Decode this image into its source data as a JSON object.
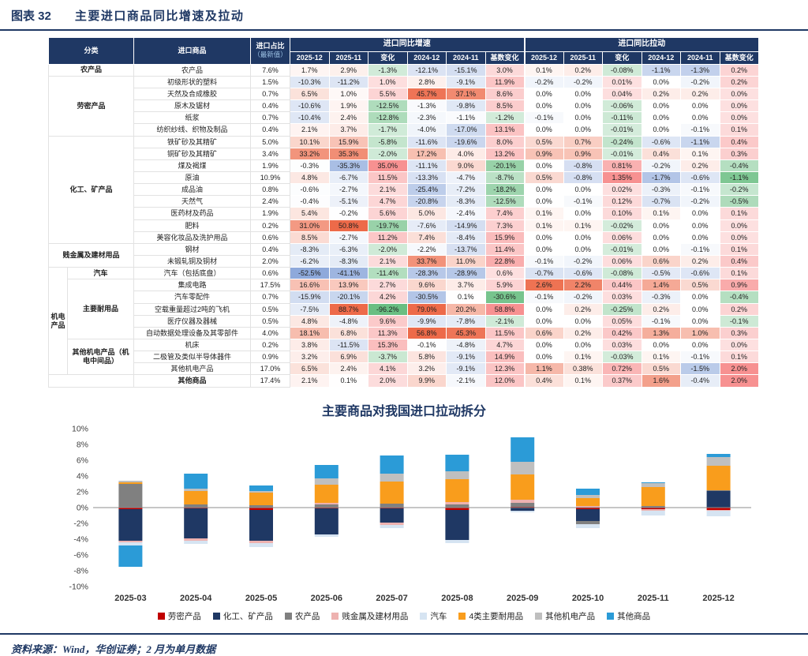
{
  "header": {
    "figure_label": "图表 32",
    "title": "主要进口商品同比增速及拉动"
  },
  "table": {
    "headers": {
      "category": "分类",
      "commodity": "进口商品",
      "share_line1": "进口占比",
      "share_line2": "（最新值）",
      "growth_group": "进口同比增速",
      "pull_group": "进口同比拉动",
      "sub": [
        "2025-12",
        "2025-11",
        "变化",
        "2024-12",
        "2024-11",
        "基数变化"
      ]
    },
    "rows": [
      {
        "cat": {
          "label": "农产品",
          "span": 1,
          "wide": true
        },
        "name": "农产品",
        "share": "7.6%",
        "g": [
          "1.7%",
          "2.9%",
          "-1.3%",
          "-12.1%",
          "-15.1%",
          "3.0%"
        ],
        "p": [
          "0.1%",
          "0.2%",
          "-0.08%",
          "-1.1%",
          "-1.3%",
          "0.2%"
        ]
      },
      {
        "cat": {
          "label": "劳密产品",
          "span": 5,
          "wide": true
        },
        "name": "初级形状的塑料",
        "share": "1.5%",
        "g": [
          "-10.3%",
          "-11.2%",
          "1.0%",
          "2.8%",
          "-9.1%",
          "11.9%"
        ],
        "p": [
          "-0.2%",
          "-0.2%",
          "0.01%",
          "0.0%",
          "-0.2%",
          "0.2%"
        ]
      },
      {
        "name": "天然及合成橡胶",
        "share": "0.7%",
        "g": [
          "6.5%",
          "1.0%",
          "5.5%",
          "45.7%",
          "37.1%",
          "8.6%"
        ],
        "p": [
          "0.0%",
          "0.0%",
          "0.04%",
          "0.2%",
          "0.2%",
          "0.0%"
        ]
      },
      {
        "name": "原木及锯材",
        "share": "0.4%",
        "g": [
          "-10.6%",
          "1.9%",
          "-12.5%",
          "-1.3%",
          "-9.8%",
          "8.5%"
        ],
        "p": [
          "0.0%",
          "0.0%",
          "-0.06%",
          "0.0%",
          "0.0%",
          "0.0%"
        ]
      },
      {
        "name": "纸浆",
        "share": "0.7%",
        "g": [
          "-10.4%",
          "2.4%",
          "-12.8%",
          "-2.3%",
          "-1.1%",
          "-1.2%"
        ],
        "p": [
          "-0.1%",
          "0.0%",
          "-0.11%",
          "0.0%",
          "0.0%",
          "0.0%"
        ]
      },
      {
        "name": "纺织纱线、织物及制品",
        "share": "0.4%",
        "g": [
          "2.1%",
          "3.7%",
          "-1.7%",
          "-4.0%",
          "-17.0%",
          "13.1%"
        ],
        "p": [
          "0.0%",
          "0.0%",
          "-0.01%",
          "0.0%",
          "-0.1%",
          "0.1%"
        ]
      },
      {
        "cat": {
          "label": "化工、矿产品",
          "span": 9,
          "wide": true
        },
        "name": "铁矿砂及其精矿",
        "share": "5.0%",
        "g": [
          "10.1%",
          "15.9%",
          "-5.8%",
          "-11.6%",
          "-19.6%",
          "8.0%"
        ],
        "p": [
          "0.5%",
          "0.7%",
          "-0.24%",
          "-0.6%",
          "-1.1%",
          "0.4%"
        ]
      },
      {
        "name": "铜矿砂及其精矿",
        "share": "3.4%",
        "g": [
          "33.2%",
          "35.3%",
          "-2.0%",
          "17.2%",
          "4.0%",
          "13.2%"
        ],
        "p": [
          "0.9%",
          "0.9%",
          "-0.01%",
          "0.4%",
          "0.1%",
          "0.3%"
        ]
      },
      {
        "name": "煤及褐煤",
        "share": "1.9%",
        "g": [
          "-0.3%",
          "-35.3%",
          "35.0%",
          "-11.1%",
          "9.0%",
          "-20.1%"
        ],
        "p": [
          "0.0%",
          "-0.8%",
          "0.81%",
          "-0.2%",
          "0.2%",
          "-0.4%"
        ]
      },
      {
        "name": "原油",
        "share": "10.9%",
        "g": [
          "4.8%",
          "-6.7%",
          "11.5%",
          "-13.3%",
          "-4.7%",
          "-8.7%"
        ],
        "p": [
          "0.5%",
          "-0.8%",
          "1.35%",
          "-1.7%",
          "-0.6%",
          "-1.1%"
        ]
      },
      {
        "name": "成品油",
        "share": "0.8%",
        "g": [
          "-0.6%",
          "-2.7%",
          "2.1%",
          "-25.4%",
          "-7.2%",
          "-18.2%"
        ],
        "p": [
          "0.0%",
          "0.0%",
          "0.02%",
          "-0.3%",
          "-0.1%",
          "-0.2%"
        ]
      },
      {
        "name": "天然气",
        "share": "2.4%",
        "g": [
          "-0.4%",
          "-5.1%",
          "4.7%",
          "-20.8%",
          "-8.3%",
          "-12.5%"
        ],
        "p": [
          "0.0%",
          "-0.1%",
          "0.12%",
          "-0.7%",
          "-0.2%",
          "-0.5%"
        ]
      },
      {
        "name": "医药材及药品",
        "share": "1.9%",
        "g": [
          "5.4%",
          "-0.2%",
          "5.6%",
          "5.0%",
          "-2.4%",
          "7.4%"
        ],
        "p": [
          "0.1%",
          "0.0%",
          "0.10%",
          "0.1%",
          "0.0%",
          "0.1%"
        ]
      },
      {
        "name": "肥料",
        "share": "0.2%",
        "g": [
          "31.0%",
          "50.8%",
          "-19.7%",
          "-7.6%",
          "-14.9%",
          "7.3%"
        ],
        "p": [
          "0.1%",
          "0.1%",
          "-0.02%",
          "0.0%",
          "0.0%",
          "0.0%"
        ]
      },
      {
        "name": "美容化妆品及洗护用品",
        "share": "0.6%",
        "g": [
          "8.5%",
          "-2.7%",
          "11.2%",
          "7.4%",
          "-8.4%",
          "15.9%"
        ],
        "p": [
          "0.0%",
          "0.0%",
          "0.06%",
          "0.0%",
          "0.0%",
          "0.0%"
        ]
      },
      {
        "cat": {
          "label": "贱金属及建材用品",
          "span": 2,
          "wide": true
        },
        "name": "钢材",
        "share": "0.4%",
        "g": [
          "-8.3%",
          "-6.3%",
          "-2.0%",
          "-2.2%",
          "-13.7%",
          "11.4%"
        ],
        "p": [
          "0.0%",
          "0.0%",
          "-0.01%",
          "0.0%",
          "-0.1%",
          "0.1%"
        ]
      },
      {
        "name": "未锻轧铜及铜材",
        "share": "2.0%",
        "g": [
          "-6.2%",
          "-8.3%",
          "2.1%",
          "33.7%",
          "11.0%",
          "22.8%"
        ],
        "p": [
          "-0.1%",
          "-0.2%",
          "0.06%",
          "0.6%",
          "0.2%",
          "0.4%"
        ]
      },
      {
        "outer": {
          "label": "机电产品",
          "span": 9
        },
        "cat": {
          "label": "汽车",
          "span": 1,
          "wide": false
        },
        "name": "汽车（包括底盘）",
        "share": "0.6%",
        "g": [
          "-52.5%",
          "-41.1%",
          "-11.4%",
          "-28.3%",
          "-28.9%",
          "0.6%"
        ],
        "p": [
          "-0.7%",
          "-0.6%",
          "-0.08%",
          "-0.5%",
          "-0.6%",
          "0.1%"
        ]
      },
      {
        "cat": {
          "label": "主要耐用品",
          "span": 5,
          "wide": false
        },
        "name": "集成电路",
        "share": "17.5%",
        "g": [
          "16.6%",
          "13.9%",
          "2.7%",
          "9.6%",
          "3.7%",
          "5.9%"
        ],
        "p": [
          "2.6%",
          "2.2%",
          "0.44%",
          "1.4%",
          "0.5%",
          "0.9%"
        ]
      },
      {
        "name": "汽车零配件",
        "share": "0.7%",
        "g": [
          "-15.9%",
          "-20.1%",
          "4.2%",
          "-30.5%",
          "0.1%",
          "-30.6%"
        ],
        "p": [
          "-0.1%",
          "-0.2%",
          "0.03%",
          "-0.3%",
          "0.0%",
          "-0.4%"
        ]
      },
      {
        "name": "空载重量超过2吨的飞机",
        "share": "0.5%",
        "g": [
          "-7.5%",
          "88.7%",
          "-96.2%",
          "79.0%",
          "20.2%",
          "58.8%"
        ],
        "p": [
          "0.0%",
          "0.2%",
          "-0.25%",
          "0.2%",
          "0.0%",
          "0.2%"
        ]
      },
      {
        "name": "医疗仪器及器械",
        "share": "0.5%",
        "g": [
          "4.8%",
          "-4.8%",
          "9.6%",
          "-9.9%",
          "-7.8%",
          "-2.1%"
        ],
        "p": [
          "0.0%",
          "0.0%",
          "0.05%",
          "-0.1%",
          "0.0%",
          "-0.1%"
        ]
      },
      {
        "name": "自动数据处理设备及其零部件",
        "share": "4.0%",
        "g": [
          "18.1%",
          "6.8%",
          "11.3%",
          "56.8%",
          "45.3%",
          "11.5%"
        ],
        "p": [
          "0.6%",
          "0.2%",
          "0.42%",
          "1.3%",
          "1.0%",
          "0.3%"
        ]
      },
      {
        "cat": {
          "label": "其他机电产品（机电中间品）",
          "span": 3,
          "wide": false
        },
        "name": "机床",
        "share": "0.2%",
        "g": [
          "3.8%",
          "-11.5%",
          "15.3%",
          "-0.1%",
          "-4.8%",
          "4.7%"
        ],
        "p": [
          "0.0%",
          "0.0%",
          "0.03%",
          "0.0%",
          "0.0%",
          "0.0%"
        ]
      },
      {
        "name": "二极管及类似半导体器件",
        "share": "0.9%",
        "g": [
          "3.2%",
          "6.9%",
          "-3.7%",
          "5.8%",
          "-9.1%",
          "14.9%"
        ],
        "p": [
          "0.0%",
          "0.1%",
          "-0.03%",
          "0.1%",
          "-0.1%",
          "0.1%"
        ]
      },
      {
        "name": "其他机电产品",
        "share": "17.0%",
        "g": [
          "6.5%",
          "2.4%",
          "4.1%",
          "3.2%",
          "-9.1%",
          "12.3%"
        ],
        "p": [
          "1.1%",
          "0.38%",
          "0.72%",
          "0.5%",
          "-1.5%",
          "2.0%"
        ]
      },
      {
        "cat": {
          "label": "",
          "span": 1,
          "wide": true
        },
        "name": "其他商品",
        "bold": true,
        "share": "17.4%",
        "g": [
          "2.1%",
          "0.1%",
          "2.0%",
          "9.9%",
          "-2.1%",
          "12.0%"
        ],
        "p": [
          "0.4%",
          "0.1%",
          "0.37%",
          "1.6%",
          "-0.4%",
          "2.0%"
        ]
      }
    ]
  },
  "chart_data": {
    "type": "bar",
    "stacked": true,
    "title": "主要商品对我国进口拉动拆分",
    "unit": "%",
    "ylim": [
      -10,
      10
    ],
    "ytick_step": 2,
    "grid": false,
    "legend_position": "bottom",
    "x": [
      "2025-03",
      "2025-04",
      "2025-05",
      "2025-06",
      "2025-07",
      "2025-08",
      "2025-09",
      "2025-10",
      "2025-11",
      "2025-12"
    ],
    "series": [
      {
        "name": "劳密产品",
        "values": [
          -0.2,
          -0.1,
          -0.3,
          -0.1,
          -0.1,
          -0.3,
          0.1,
          -0.2,
          -0.2,
          -0.3
        ]
      },
      {
        "name": "化工、矿产品",
        "values": [
          -4.0,
          -3.8,
          -3.9,
          -3.3,
          -1.8,
          -3.8,
          -0.4,
          -1.5,
          0.0,
          2.1
        ]
      },
      {
        "name": "农产品",
        "values": [
          3.0,
          0.4,
          0.3,
          0.4,
          0.5,
          0.4,
          0.5,
          -0.4,
          0.2,
          0.1
        ]
      },
      {
        "name": "贱金属及建材用品",
        "values": [
          -0.2,
          -0.3,
          -0.3,
          0.2,
          -0.3,
          0.3,
          0.4,
          0.2,
          -0.2,
          -0.1
        ]
      },
      {
        "name": "汽车",
        "values": [
          -0.4,
          -0.4,
          -0.5,
          -0.3,
          -0.4,
          -0.4,
          -0.2,
          -0.5,
          -0.6,
          -0.7
        ]
      },
      {
        "name": "4类主要耐用品",
        "values": [
          0.2,
          1.7,
          1.6,
          2.3,
          2.8,
          2.9,
          3.2,
          1.0,
          2.4,
          3.1
        ]
      },
      {
        "name": "其他机电产品",
        "values": [
          0.2,
          0.3,
          0.2,
          0.8,
          1.0,
          1.0,
          1.6,
          0.4,
          0.5,
          1.1
        ]
      },
      {
        "name": "其他商品",
        "values": [
          -2.7,
          1.9,
          0.7,
          1.7,
          2.3,
          2.1,
          3.1,
          0.8,
          0.1,
          0.4
        ]
      }
    ],
    "colors": [
      "#c00000",
      "#1f3864",
      "#808080",
      "#eeb2b0",
      "#d6e4f2",
      "#f99d1c",
      "#bfbfbf",
      "#2b9bd7"
    ]
  },
  "footer": {
    "source": "资料来源：Wind，华创证券；2 月为单月数据"
  },
  "theme": {
    "navy": "#1f3864",
    "pos_cell": "#ed6a49",
    "neg_cell": "#8ea9db",
    "chg_pos": "#f79191",
    "chg_neg": "#6abe82"
  }
}
